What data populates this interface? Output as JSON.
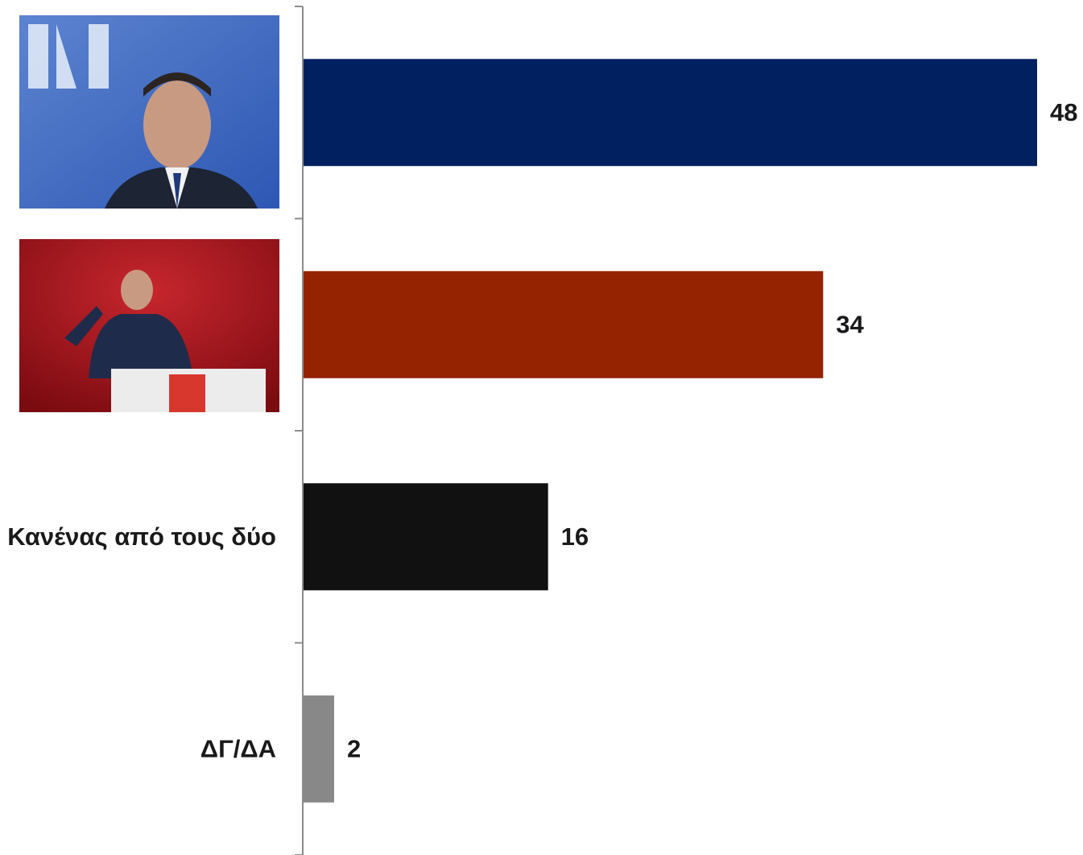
{
  "chart_data": {
    "type": "hbar",
    "categories": [
      null,
      null,
      "Κανένας από τους δύο",
      "ΔΓ/ΔΑ"
    ],
    "values": [
      48,
      34,
      16,
      2
    ],
    "colors": [
      "#002060",
      "#952200",
      "#111111",
      "#888888"
    ]
  }
}
